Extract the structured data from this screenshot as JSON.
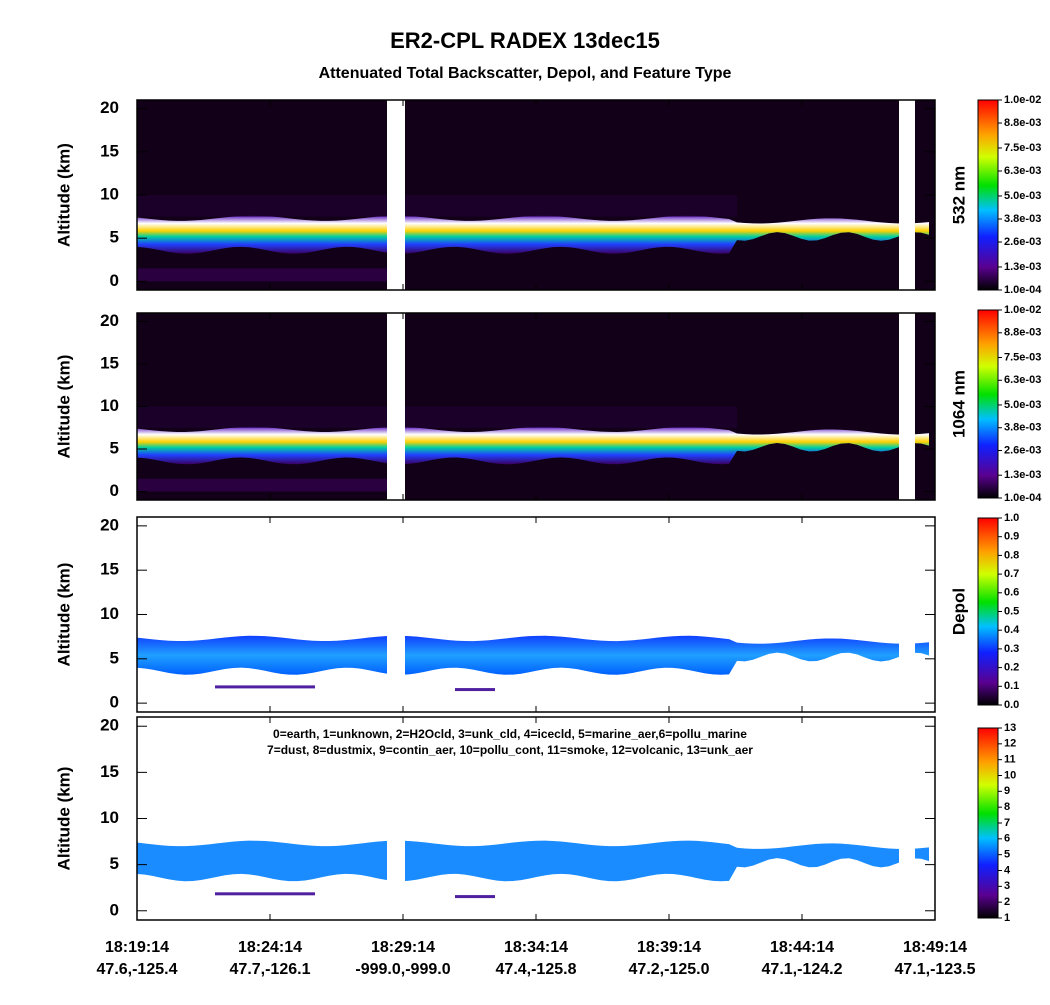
{
  "chart_data": {
    "title": "ER2-CPL RADEX 13dec15",
    "subtitle": "Attenuated Total Backscatter, Depol, and Feature Type",
    "xticks": [
      {
        "time": "18:19:14",
        "location": "47.6,-125.4"
      },
      {
        "time": "18:24:14",
        "location": "47.7,-126.1"
      },
      {
        "time": "18:29:14",
        "location": "-999.0,-999.0"
      },
      {
        "time": "18:34:14",
        "location": "47.4,-125.8"
      },
      {
        "time": "18:39:14",
        "location": "47.2,-125.0"
      },
      {
        "time": "18:44:14",
        "location": "47.1,-124.2"
      },
      {
        "time": "18:49:14",
        "location": "47.1,-123.5"
      }
    ],
    "panels": [
      {
        "type": "heatmap",
        "ylabel": "Altitude (km)",
        "ylim": [
          -1,
          21
        ],
        "yticks": [
          0,
          5,
          10,
          15,
          20
        ],
        "colorbar_label": "532 nm",
        "background": "dark",
        "clim": [
          0.0001,
          0.01
        ],
        "cticks": [
          {
            "value": 0.0001,
            "label": "1.0e-04"
          },
          {
            "value": 0.0013,
            "label": "1.3e-03"
          },
          {
            "value": 0.0026,
            "label": "2.6e-03"
          },
          {
            "value": 0.0038,
            "label": "3.8e-03"
          },
          {
            "value": 0.005,
            "label": "5.0e-03"
          },
          {
            "value": 0.0063,
            "label": "6.3e-03"
          },
          {
            "value": 0.0075,
            "label": "7.5e-03"
          },
          {
            "value": 0.0088,
            "label": "8.8e-03"
          },
          {
            "value": 0.01,
            "label": "1.0e-02"
          }
        ]
      },
      {
        "type": "heatmap",
        "ylabel": "Altitude (km)",
        "ylim": [
          -1,
          21
        ],
        "yticks": [
          0,
          5,
          10,
          15,
          20
        ],
        "colorbar_label": "1064 nm",
        "background": "dark",
        "clim": [
          0.0001,
          0.01
        ],
        "cticks": [
          {
            "value": 0.0001,
            "label": "1.0e-04"
          },
          {
            "value": 0.0013,
            "label": "1.3e-03"
          },
          {
            "value": 0.0026,
            "label": "2.6e-03"
          },
          {
            "value": 0.0038,
            "label": "3.8e-03"
          },
          {
            "value": 0.005,
            "label": "5.0e-03"
          },
          {
            "value": 0.0063,
            "label": "6.3e-03"
          },
          {
            "value": 0.0075,
            "label": "7.5e-03"
          },
          {
            "value": 0.0088,
            "label": "8.8e-03"
          },
          {
            "value": 0.01,
            "label": "1.0e-02"
          }
        ]
      },
      {
        "type": "heatmap",
        "ylabel": "Altitude (km)",
        "ylim": [
          -1,
          21
        ],
        "yticks": [
          0,
          5,
          10,
          15,
          20
        ],
        "colorbar_label": "Depol",
        "background": "light",
        "clim": [
          0,
          1
        ],
        "cticks": [
          {
            "value": 0,
            "label": "0.0"
          },
          0.1,
          0.2,
          0.3,
          0.4,
          0.5,
          0.6,
          0.7,
          0.8,
          0.9,
          {
            "value": 1,
            "label": "1.0"
          }
        ]
      },
      {
        "type": "heatmap",
        "ylabel": "Altitude (km)",
        "ylim": [
          -1,
          21
        ],
        "yticks": [
          0,
          5,
          10,
          15,
          20
        ],
        "background": "light",
        "clim": [
          1,
          13
        ],
        "cticks": [
          1,
          2,
          3,
          4,
          5,
          6,
          7,
          8,
          9,
          10,
          11,
          12,
          13
        ],
        "annotations": [
          "0=earth, 1=unknown, 2=H2Ocld, 3=unk_cld, 4=icecld, 5=marine_aer,6=pollu_marine",
          "7=dust, 8=dustmix, 9=contin_aer, 10=pollu_cont, 11=smoke, 12=volcanic, 13=unk_aer"
        ]
      }
    ]
  }
}
